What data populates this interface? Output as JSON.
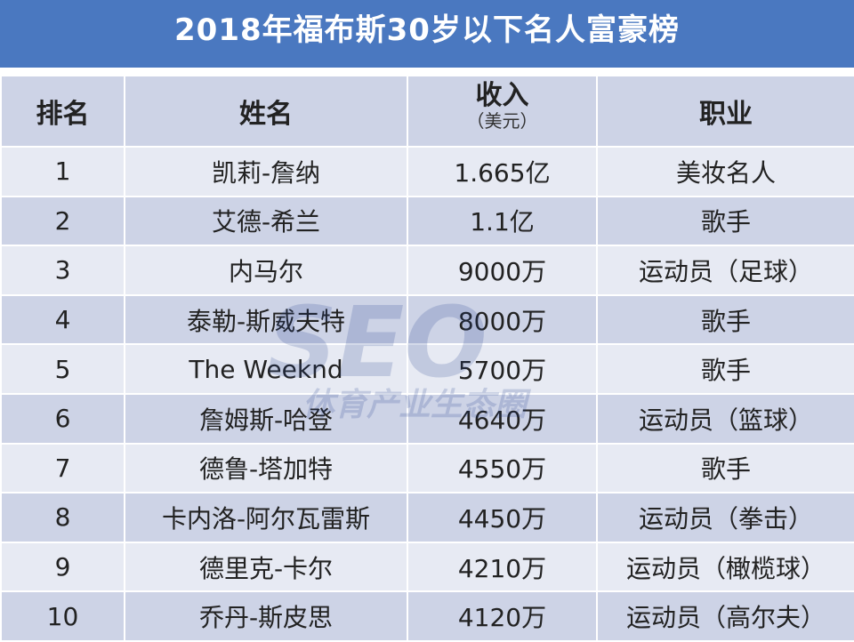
{
  "title": "2018年福布斯30岁以下名人富豪榜",
  "headers": {
    "rank": "排名",
    "name": "姓名",
    "income": "收入",
    "income_unit": "（美元）",
    "job": "职业"
  },
  "rows": [
    {
      "rank": "1",
      "name": "凯莉-詹纳",
      "income": "1.665亿",
      "job": "美妆名人"
    },
    {
      "rank": "2",
      "name": "艾德-希兰",
      "income": "1.1亿",
      "job": "歌手"
    },
    {
      "rank": "3",
      "name": "内马尔",
      "income": "9000万",
      "job": "运动员（足球）"
    },
    {
      "rank": "4",
      "name": "泰勒-斯威夫特",
      "income": "8000万",
      "job": "歌手"
    },
    {
      "rank": "5",
      "name": "The Weeknd",
      "income": "5700万",
      "job": "歌手"
    },
    {
      "rank": "6",
      "name": "詹姆斯-哈登",
      "income": "4640万",
      "job": "运动员（篮球）"
    },
    {
      "rank": "7",
      "name": "德鲁-塔加特",
      "income": "4550万",
      "job": "歌手"
    },
    {
      "rank": "8",
      "name": "卡内洛-阿尔瓦雷斯",
      "income": "4450万",
      "job": "运动员（拳击）"
    },
    {
      "rank": "9",
      "name": "德里克-卡尔",
      "income": "4210万",
      "job": "运动员（橄榄球）"
    },
    {
      "rank": "10",
      "name": "乔丹-斯皮思",
      "income": "4120万",
      "job": "运动员（高尔夫）"
    }
  ],
  "watermark": {
    "logo": "SEO",
    "text": "体育产业生态圈"
  },
  "colors": {
    "title_bg": "#4a78c0",
    "header_bg": "#cdd3e6",
    "row_light": "#e7eaf3",
    "row_dark": "#cdd3e6"
  }
}
